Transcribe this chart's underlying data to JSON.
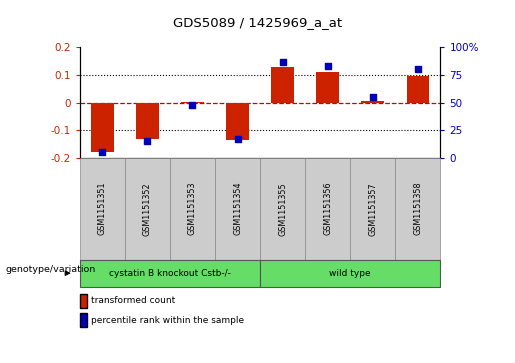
{
  "title": "GDS5089 / 1425969_a_at",
  "samples": [
    "GSM1151351",
    "GSM1151352",
    "GSM1151353",
    "GSM1151354",
    "GSM1151355",
    "GSM1151356",
    "GSM1151357",
    "GSM1151358"
  ],
  "red_values": [
    -0.178,
    -0.13,
    0.002,
    -0.135,
    0.13,
    0.112,
    0.005,
    0.097
  ],
  "blue_values_pct": [
    5,
    15,
    48,
    17,
    87,
    83,
    55,
    80
  ],
  "ylim_left": [
    -0.2,
    0.2
  ],
  "ylim_right": [
    0,
    100
  ],
  "yticks_left": [
    -0.2,
    -0.1,
    0.0,
    0.1,
    0.2
  ],
  "ytick_labels_left": [
    "-0.2",
    "-0.1",
    "0",
    "0.1",
    "0.2"
  ],
  "yticks_right": [
    0,
    25,
    50,
    75,
    100
  ],
  "ytick_labels_right": [
    "0",
    "25",
    "50",
    "75",
    "100%"
  ],
  "red_color": "#CC2200",
  "blue_color": "#0000BB",
  "red_dashed_color": "#CC0000",
  "bar_width": 0.5,
  "group1_label": "cystatin B knockout Cstb-/-",
  "group2_label": "wild type",
  "group_row_label": "genotype/variation",
  "legend_red": "transformed count",
  "legend_blue": "percentile rank within the sample",
  "background_color": "#ffffff",
  "tick_bg": "#cccccc",
  "group_bg": "#66DD66"
}
